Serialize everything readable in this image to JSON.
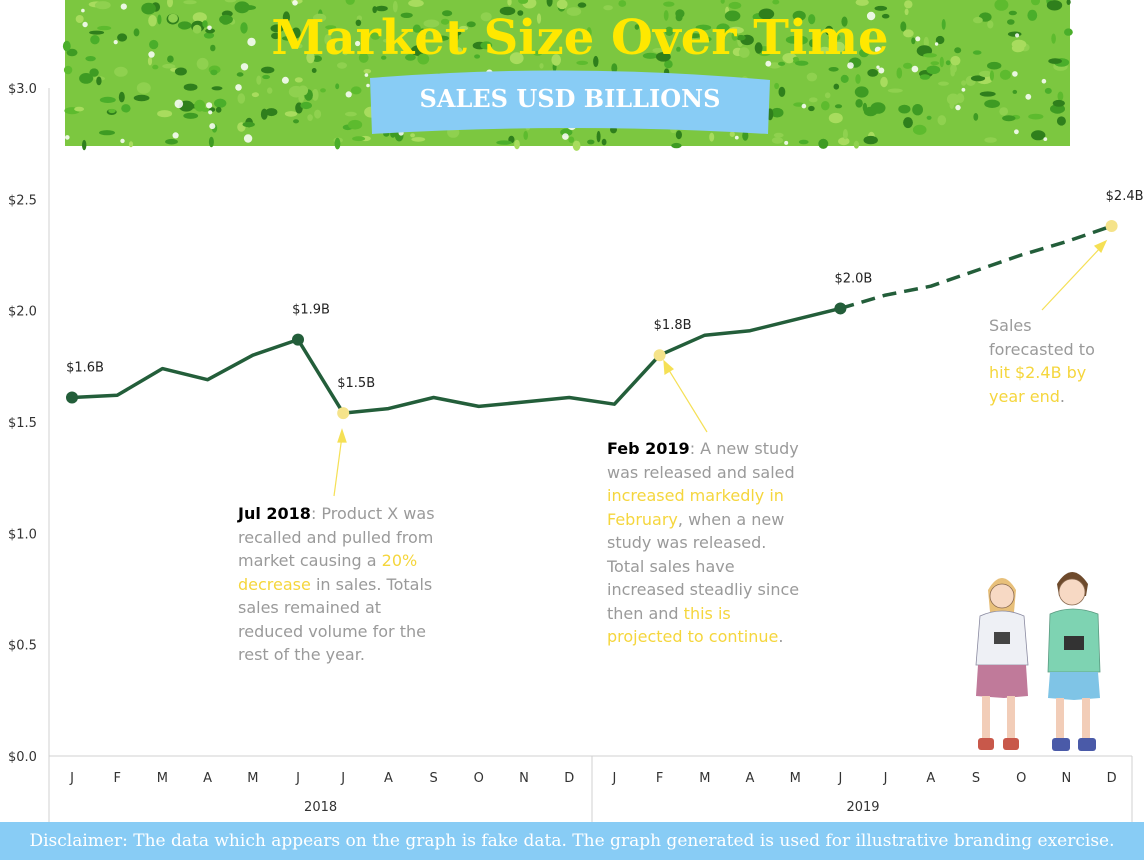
{
  "chart_data": {
    "type": "line",
    "title": "Market Size Over Time",
    "subtitle": "SALES USD BILLIONS",
    "ylim": [
      0,
      3.0
    ],
    "y_ticks": [
      "$0.0",
      "$0.5",
      "$1.0",
      "$1.5",
      "$2.0",
      "$2.5",
      "$3.0"
    ],
    "y_tick_values": [
      0,
      0.5,
      1.0,
      1.5,
      2.0,
      2.5,
      3.0
    ],
    "month_labels": [
      "J",
      "F",
      "M",
      "A",
      "M",
      "J",
      "J",
      "A",
      "S",
      "O",
      "N",
      "D",
      "J",
      "F",
      "M",
      "A",
      "M",
      "J",
      "J",
      "A",
      "S",
      "O",
      "N",
      "D"
    ],
    "year_labels": [
      "2018",
      "2019"
    ],
    "series": [
      {
        "style": "solid",
        "color": "#235E3A",
        "values": [
          1.61,
          1.62,
          1.74,
          1.69,
          1.8,
          1.87,
          1.54,
          1.56,
          1.61,
          1.57,
          1.59,
          1.61,
          1.58,
          1.8,
          1.89,
          1.91,
          1.96,
          2.01
        ]
      },
      {
        "style": "dashed",
        "color": "#235E3A",
        "start_index": 17,
        "values": [
          2.01,
          2.07,
          2.11,
          2.18,
          2.25,
          2.31,
          2.38
        ]
      }
    ],
    "markers": [
      {
        "index": 0,
        "value": 1.61,
        "label": "$1.6B",
        "color": "#235E3A"
      },
      {
        "index": 5,
        "value": 1.87,
        "label": "$1.9B",
        "color": "#235E3A"
      },
      {
        "index": 6,
        "value": 1.54,
        "label": "$1.5B",
        "color": "#F5E38A"
      },
      {
        "index": 13,
        "value": 1.8,
        "label": "$1.8B",
        "color": "#F5E38A"
      },
      {
        "index": 17,
        "value": 2.01,
        "label": "$2.0B",
        "color": "#235E3A"
      },
      {
        "index": 23,
        "value": 2.38,
        "label": "$2.4B",
        "color": "#F5E38A"
      }
    ]
  },
  "annotations": {
    "jul2018": {
      "date": "Jul 2018",
      "text1": ": Product X was recalled and pulled from market causing a ",
      "highlight1": "20% decrease",
      "text2": " in sales. Totals sales remained at reduced volume for the rest of the year."
    },
    "feb2019": {
      "date": "Feb 2019",
      "text1": ": A new study was released and saled ",
      "highlight1": "increased markedly in February",
      "text2": ", when a new study was released. Total sales have increased steadliy since then and ",
      "highlight2": "this is projected to continue",
      "text3": "."
    },
    "forecast": {
      "text1": "Sales forecasted to ",
      "highlight1": "hit $2.4B by year end",
      "text2": "."
    }
  },
  "footer": {
    "disclaimer": "Disclaimer: The data which appears on the graph is fake data. The graph generated is used for illustrative branding exercise."
  },
  "colors": {
    "line": "#235E3A",
    "highlight": "#F5D63D",
    "banner": "#88CCF5",
    "foliage": "#4CAF2A"
  }
}
